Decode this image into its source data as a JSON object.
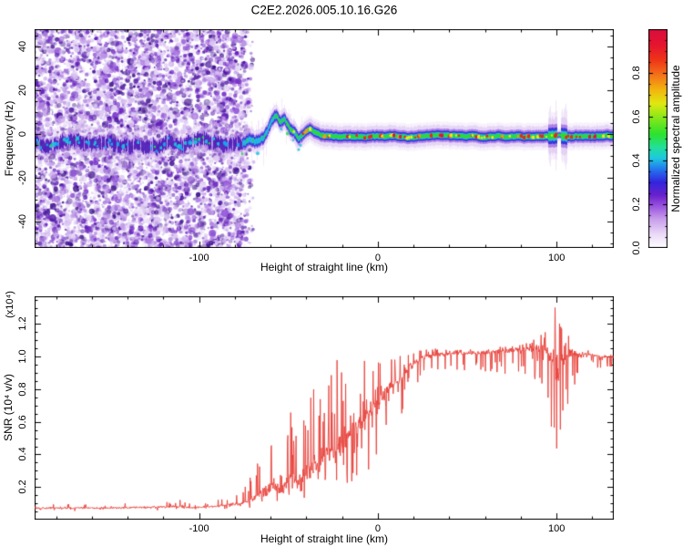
{
  "title": "C2E2.2026.005.10.16.G26",
  "chart_data": [
    {
      "id": "spectrogram",
      "type": "heatmap",
      "title": "C2E2.2026.005.10.16.G26",
      "xlabel": "Height of straight line (km)",
      "ylabel": "Frequency (Hz)",
      "xlim": [
        -192,
        132
      ],
      "ylim": [
        -52,
        48
      ],
      "xticks": [
        -100,
        0,
        100
      ],
      "x_minor_step": 20,
      "yticks": [
        -40,
        -20,
        0,
        20,
        40
      ],
      "y_minor_step": 5,
      "grid": false,
      "legend": "colorbar-right",
      "noise_end_km": -76,
      "noise_dot_count": 6500,
      "noise_palette": [
        "#e6d7f7",
        "#d8c0f2",
        "#c5a0ea",
        "#ad7ce2",
        "#9154d8",
        "#732cc8",
        "#5c16b6",
        "#45109c",
        "#380d86"
      ],
      "band_centerline": [
        [
          -192,
          -3.5
        ],
        [
          -181,
          -4.6
        ],
        [
          -171,
          -3.0
        ],
        [
          -161,
          -4.8
        ],
        [
          -151,
          -3.2
        ],
        [
          -141,
          -4.6
        ],
        [
          -132,
          -3.0
        ],
        [
          -124,
          -5.0
        ],
        [
          -116,
          -3.4
        ],
        [
          -108,
          -4.8
        ],
        [
          -100,
          -3.2
        ],
        [
          -92,
          -4.6
        ],
        [
          -86,
          -3.3
        ],
        [
          -80,
          -4.2
        ],
        [
          -76,
          -3.8
        ],
        [
          -71,
          -2.6
        ],
        [
          -67,
          -3.6
        ],
        [
          -63,
          -0.5
        ],
        [
          -60,
          3.5
        ],
        [
          -57,
          7.5
        ],
        [
          -55,
          5.2
        ],
        [
          -52,
          6.3
        ],
        [
          -50,
          3.0
        ],
        [
          -47,
          0.5
        ],
        [
          -44,
          -1.5
        ],
        [
          -41,
          0.6
        ],
        [
          -38,
          2.2
        ],
        [
          -35,
          0.6
        ],
        [
          -32,
          -0.8
        ],
        [
          -26,
          -1.3
        ],
        [
          -18,
          -0.9
        ],
        [
          -8,
          -1.1
        ],
        [
          4,
          -1.0
        ],
        [
          20,
          -0.9
        ],
        [
          40,
          -1.0
        ],
        [
          62,
          -0.9
        ],
        [
          80,
          -1.0
        ],
        [
          92,
          -1.0
        ],
        [
          99,
          -0.7
        ],
        [
          104,
          -1.2
        ],
        [
          112,
          -1.0
        ],
        [
          132,
          -0.9
        ]
      ],
      "band_amplitude": [
        [
          -192,
          0.32
        ],
        [
          -90,
          0.32
        ],
        [
          -72,
          0.45
        ],
        [
          -58,
          0.6
        ],
        [
          -48,
          0.65
        ],
        [
          -40,
          0.72
        ],
        [
          -30,
          0.8
        ],
        [
          -15,
          0.88
        ],
        [
          0,
          0.9
        ],
        [
          132,
          0.9
        ]
      ],
      "disturbance_km": [
        95.5,
        106
      ],
      "pinch_km": [
        100.4,
        102.6
      ],
      "band_palette": {
        "fringe": "#efe3fa",
        "halo": "#d9bff1",
        "violet": "#8a4ad8",
        "blue": "#2f30d8",
        "indigo": "#4616b4",
        "cyan": "#22c2e2",
        "cyan2": "#18a8f0",
        "green": "#2ed832",
        "green2": "#2ed858",
        "yellow": "#ece81c",
        "orange": "#f29a16",
        "red": "#e82424",
        "crimson": "#d81040"
      },
      "colorbar": {
        "label": "Normalized spectral amplitude",
        "range": [
          0,
          1
        ],
        "ticks": [
          0.0,
          0.2,
          0.4,
          0.6,
          0.8
        ],
        "tick_labels": [
          "0.0",
          "0.2",
          "0.4",
          "0.6",
          "0.8"
        ],
        "minor_step": 0.05,
        "stops": [
          [
            0.0,
            "#ffffff"
          ],
          [
            0.06,
            "#ecdcf8"
          ],
          [
            0.13,
            "#c9a0ec"
          ],
          [
            0.19,
            "#9b55e0"
          ],
          [
            0.24,
            "#6a22cc"
          ],
          [
            0.3,
            "#3325dd"
          ],
          [
            0.36,
            "#2377ee"
          ],
          [
            0.41,
            "#1ec8e0"
          ],
          [
            0.46,
            "#23e09a"
          ],
          [
            0.52,
            "#2ce22e"
          ],
          [
            0.6,
            "#8ee818"
          ],
          [
            0.66,
            "#e0e812"
          ],
          [
            0.72,
            "#f2b70e"
          ],
          [
            0.79,
            "#f4731a"
          ],
          [
            0.86,
            "#ee3418"
          ],
          [
            0.93,
            "#e51430"
          ],
          [
            1.0,
            "#d80f3c"
          ]
        ]
      },
      "seed": 913
    },
    {
      "id": "snr",
      "type": "line",
      "xlabel": "Height of straight line (km)",
      "ylabel": "SNR (10⁴ v/v)",
      "axis_multiplier": "(x10⁴)",
      "xlim": [
        -192,
        132
      ],
      "ylim": [
        0,
        1.37
      ],
      "xticks": [
        -100,
        0,
        100
      ],
      "x_minor_step": 20,
      "yticks": [
        0.2,
        0.4,
        0.6,
        0.8,
        1.0,
        1.2
      ],
      "ytick_labels": [
        "0.2",
        "0.4",
        "0.6",
        "0.8",
        "1.0",
        "1.2"
      ],
      "y_minor_step": 0.05,
      "line_color": "#e8413a",
      "envelope_points": [
        [
          -192,
          0.055,
          0.095,
          0.4
        ],
        [
          -150,
          0.055,
          0.095,
          0.4
        ],
        [
          -110,
          0.055,
          0.13,
          0.3
        ],
        [
          -104,
          0.055,
          0.1,
          0.35
        ],
        [
          -88,
          0.06,
          0.13,
          0.35
        ],
        [
          -76,
          0.06,
          0.18,
          0.3
        ],
        [
          -69,
          0.07,
          0.32,
          0.2
        ],
        [
          -63,
          0.07,
          0.5,
          0.18
        ],
        [
          -58,
          0.08,
          0.62,
          0.2
        ],
        [
          -54,
          0.08,
          0.38,
          0.25
        ],
        [
          -49,
          0.09,
          0.75,
          0.2
        ],
        [
          -44,
          0.1,
          0.6,
          0.25
        ],
        [
          -39,
          0.11,
          0.9,
          0.2
        ],
        [
          -33,
          0.12,
          0.75,
          0.3
        ],
        [
          -27,
          0.13,
          0.97,
          0.3
        ],
        [
          -21,
          0.13,
          1.03,
          0.35
        ],
        [
          -15,
          0.16,
          1.06,
          0.4
        ],
        [
          -9,
          0.22,
          1.03,
          0.45
        ],
        [
          -4,
          0.3,
          1.05,
          0.5
        ],
        [
          1,
          0.4,
          1.0,
          0.55
        ],
        [
          6,
          0.5,
          1.03,
          0.6
        ],
        [
          11,
          0.58,
          1.05,
          0.6
        ],
        [
          16,
          0.68,
          1.05,
          0.65
        ],
        [
          21,
          0.8,
          1.05,
          0.7
        ],
        [
          28,
          0.88,
          1.06,
          0.75
        ],
        [
          40,
          0.92,
          1.05,
          0.8
        ],
        [
          55,
          0.91,
          1.06,
          0.8
        ],
        [
          70,
          0.89,
          1.08,
          0.8
        ],
        [
          80,
          0.87,
          1.1,
          0.8
        ],
        [
          88,
          0.84,
          1.12,
          0.8
        ],
        [
          94,
          0.72,
          1.2,
          0.7
        ],
        [
          98,
          0.42,
          1.33,
          0.6
        ],
        [
          102,
          0.38,
          1.34,
          0.6
        ],
        [
          105,
          0.55,
          1.25,
          0.65
        ],
        [
          108,
          0.78,
          1.12,
          0.75
        ],
        [
          114,
          0.9,
          1.06,
          0.8
        ],
        [
          122,
          0.93,
          1.03,
          0.8
        ],
        [
          132,
          0.93,
          1.02,
          0.8
        ]
      ],
      "seed": 2026
    }
  ]
}
